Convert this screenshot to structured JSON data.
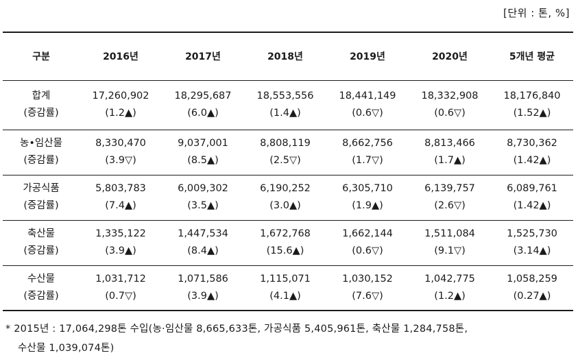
{
  "unit_label": "[단위 : 톤, %]",
  "header": {
    "category": "구분",
    "years": [
      "2016년",
      "2017년",
      "2018년",
      "2019년",
      "2020년",
      "5개년 평균"
    ]
  },
  "rows": [
    {
      "name": "합계",
      "sub": "(증감률)",
      "values": [
        "17,260,902",
        "18,295,687",
        "18,553,556",
        "18,441,149",
        "18,332,908",
        "18,176,840"
      ],
      "rates": [
        "(1.2▲)",
        "(6.0▲)",
        "(1.4▲)",
        "(0.6▽)",
        "(0.6▽)",
        "(1.52▲)"
      ]
    },
    {
      "name": "농•임산물",
      "sub": "(증감률)",
      "values": [
        "8,330,470",
        "9,037,001",
        "8,808,119",
        "8,662,756",
        "8,813,466",
        "8,730,362"
      ],
      "rates": [
        "(3.9▽)",
        "(8.5▲)",
        "(2.5▽)",
        "(1.7▽)",
        "(1.7▲)",
        "(1.42▲)"
      ]
    },
    {
      "name": "가공식품",
      "sub": "(증감률)",
      "values": [
        "5,803,783",
        "6,009,302",
        "6,190,252",
        "6,305,710",
        "6,139,757",
        "6,089,761"
      ],
      "rates": [
        "(7.4▲)",
        "(3.5▲)",
        "(3.0▲)",
        "(1.9▲)",
        "(2.6▽)",
        "(1.42▲)"
      ]
    },
    {
      "name": "축산물",
      "sub": "(증감률)",
      "values": [
        "1,335,122",
        "1,447,534",
        "1,672,768",
        "1,662,144",
        "1,511,084",
        "1,525,730"
      ],
      "rates": [
        "(3.9▲)",
        "(8.4▲)",
        "(15.6▲)",
        "(0.6▽)",
        "(9.1▽)",
        "(3.14▲)"
      ]
    },
    {
      "name": "수산물",
      "sub": "(증감률)",
      "values": [
        "1,031,712",
        "1,071,586",
        "1,115,071",
        "1,030,152",
        "1,042,775",
        "1,058,259"
      ],
      "rates": [
        "(0.7▽)",
        "(3.9▲)",
        "(4.1▲)",
        "(7.6▽)",
        "(1.2▲)",
        "(0.27▲)"
      ]
    }
  ],
  "footnote": {
    "line1": "* 2015년 : 17,064,298톤 수입(농·임산물 8,665,633톤, 가공식품 5,405,961톤, 축산물 1,284,758톤,",
    "line2": "수산물 1,039,074톤)"
  }
}
